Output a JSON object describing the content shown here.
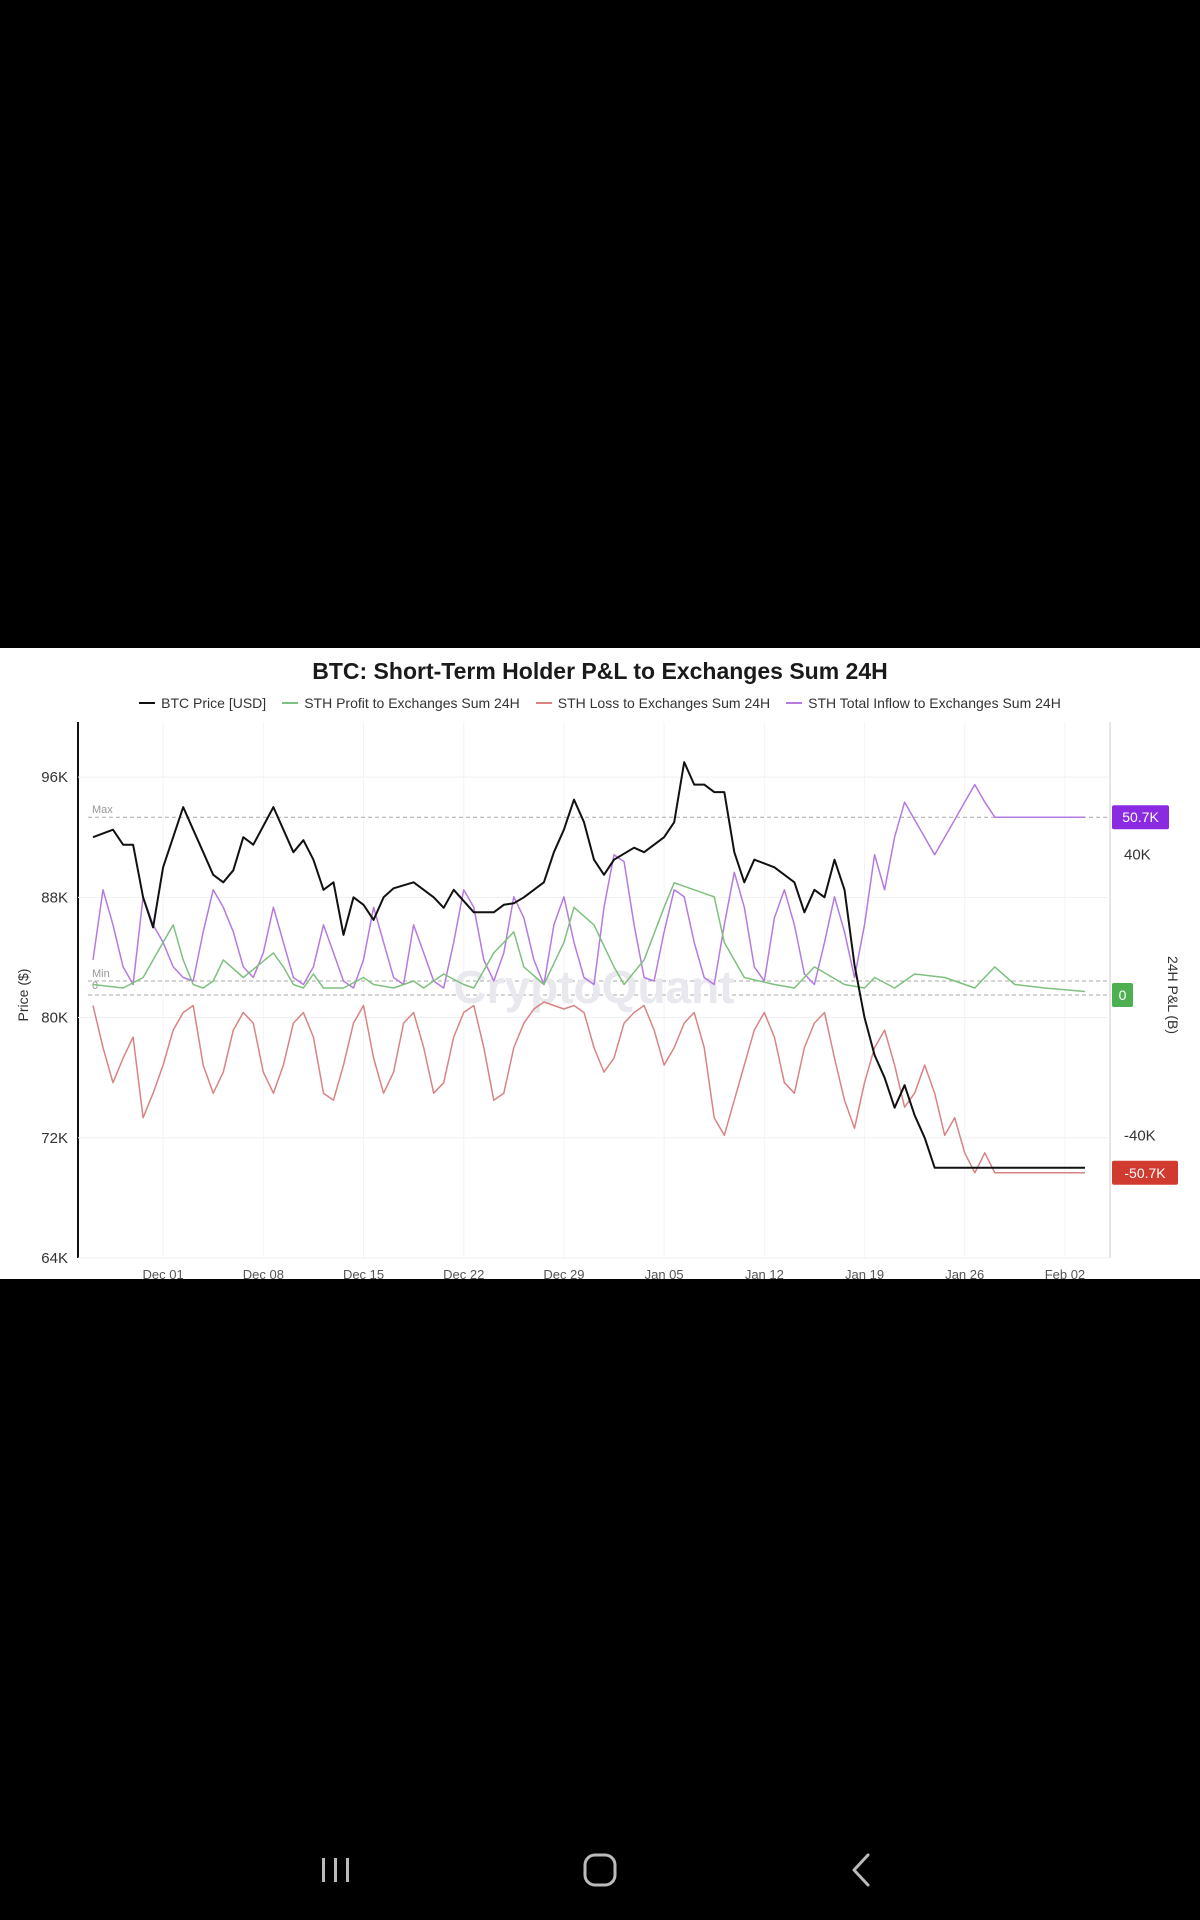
{
  "chart_data": {
    "type": "line",
    "title": "BTC: Short-Term Holder P&L to Exchanges Sum 24H",
    "legend": [
      {
        "name": "BTC Price [USD]",
        "color": "#111111"
      },
      {
        "name": "STH Profit to Exchanges Sum 24H",
        "color": "#7ec07e"
      },
      {
        "name": "STH Loss to Exchanges Sum 24H",
        "color": "#d98383"
      },
      {
        "name": "STH Total Inflow to  Exchanges Sum 24H",
        "color": "#b57ae0"
      }
    ],
    "y_left": {
      "label": "Price ($)",
      "ticks": [
        "96K",
        "88K",
        "80K",
        "72K",
        "64K"
      ],
      "range": [
        64000,
        99000
      ]
    },
    "y_right": {
      "label": "24H P&L (B)",
      "ticks": [
        "40K",
        "-40K"
      ],
      "range": [
        -75000,
        75000
      ]
    },
    "x_axis": {
      "ticks": [
        "Dec 01",
        "Dec 08",
        "Dec 15",
        "Dec 22",
        "Dec 29",
        "Jan 05",
        "Jan 12",
        "Jan 19",
        "Jan 26",
        "Feb 02"
      ]
    },
    "reference_lines": [
      {
        "label": "Max",
        "axis": "right",
        "value": 50700
      },
      {
        "label": "Min",
        "axis": "right",
        "value": 0
      },
      {
        "label": "0",
        "axis": "right",
        "value": 0
      }
    ],
    "badges": [
      {
        "text": "50.7K",
        "value": 50700,
        "color": "#8a2be2"
      },
      {
        "text": "0",
        "value": 0,
        "color": "#4caf50"
      },
      {
        "text": "-50.7K",
        "value": -50700,
        "color": "#d03a2f"
      }
    ],
    "watermark": "CryptoQuant",
    "series": [
      {
        "name": "BTC Price [USD]",
        "axis": "left",
        "color": "#111111",
        "x_days": [
          0,
          2,
          3,
          4,
          5,
          6,
          7,
          9,
          10,
          11,
          12,
          13,
          14,
          15,
          16,
          18,
          19,
          20,
          21,
          22,
          23,
          24,
          25,
          26,
          27,
          28,
          29,
          30,
          32,
          33,
          34,
          35,
          36,
          38,
          40,
          41,
          42,
          43,
          44,
          45,
          46,
          47,
          48,
          49,
          50,
          51,
          52,
          54,
          55,
          56,
          57,
          58,
          59,
          60,
          61,
          62,
          63,
          64,
          65,
          66,
          68,
          69,
          70,
          71,
          72,
          73,
          74,
          75,
          76,
          77,
          78,
          79,
          80,
          81,
          82,
          83,
          84,
          85,
          86,
          87,
          88,
          89,
          90,
          91,
          92,
          93,
          94,
          95,
          96,
          97,
          98,
          99
        ],
        "values": [
          92000,
          92500,
          91500,
          91500,
          88000,
          86000,
          90000,
          94000,
          92500,
          91000,
          89500,
          89000,
          89800,
          92000,
          91500,
          94000,
          92500,
          91000,
          91800,
          90500,
          88500,
          89000,
          85500,
          88000,
          87500,
          86500,
          88000,
          88600,
          89000,
          88500,
          88000,
          87300,
          88500,
          87000,
          87000,
          87500,
          87600,
          88000,
          88500,
          89000,
          91000,
          92500,
          94500,
          93000,
          90500,
          89500,
          90500,
          91300,
          91000,
          91500,
          92000,
          93000,
          97000,
          95500,
          95500,
          95000,
          95000,
          91000,
          89000,
          90500,
          90000,
          89500,
          89000,
          87000,
          88500,
          88000,
          90500,
          88500,
          83500,
          80000,
          77500,
          76000,
          74000,
          75500,
          73500,
          72000,
          70000,
          70000,
          70000,
          70000,
          70000,
          70000,
          70000,
          70000,
          70000,
          70000,
          70000,
          70000,
          70000,
          70000,
          70000,
          70000
        ]
      },
      {
        "name": "STH Total Inflow to  Exchanges Sum 24H",
        "axis": "right",
        "color": "#b57ae0",
        "x_days": [
          0,
          1,
          2,
          3,
          4,
          5,
          6,
          7,
          8,
          9,
          10,
          11,
          12,
          13,
          14,
          15,
          16,
          17,
          18,
          19,
          20,
          21,
          22,
          23,
          24,
          25,
          26,
          27,
          28,
          29,
          30,
          31,
          32,
          33,
          34,
          35,
          36,
          37,
          38,
          39,
          40,
          41,
          42,
          43,
          44,
          45,
          46,
          47,
          48,
          49,
          50,
          51,
          52,
          53,
          54,
          55,
          56,
          57,
          58,
          59,
          60,
          61,
          62,
          63,
          64,
          65,
          66,
          67,
          68,
          69,
          70,
          71,
          72,
          73,
          74,
          75,
          76,
          77,
          78,
          79,
          80,
          81,
          82,
          83,
          84,
          85,
          86,
          87,
          88,
          89,
          90,
          91,
          92,
          93,
          94,
          95,
          96,
          97,
          98,
          99
        ],
        "values": [
          10000,
          30000,
          20000,
          8000,
          3000,
          28000,
          20000,
          15000,
          8000,
          5000,
          4000,
          18000,
          30000,
          25000,
          18000,
          8000,
          5000,
          12000,
          25000,
          15000,
          5000,
          3000,
          8000,
          20000,
          12000,
          4000,
          2000,
          10000,
          25000,
          15000,
          5000,
          3000,
          20000,
          12000,
          4000,
          2000,
          15000,
          30000,
          25000,
          10000,
          4000,
          12000,
          28000,
          22000,
          10000,
          3000,
          20000,
          28000,
          15000,
          5000,
          3000,
          25000,
          40000,
          38000,
          20000,
          5000,
          4000,
          18000,
          30000,
          28000,
          15000,
          5000,
          3000,
          20000,
          35000,
          25000,
          8000,
          4000,
          22000,
          30000,
          20000,
          6000,
          3000,
          15000,
          28000,
          18000,
          5000,
          20000,
          40000,
          30000,
          45000,
          55000,
          50000,
          45000,
          40000,
          45000,
          50000,
          55000,
          60000,
          55000,
          50700,
          50700,
          50700,
          50700,
          50700,
          50700,
          50700,
          50700,
          50700,
          50700
        ]
      },
      {
        "name": "STH Loss to Exchanges Sum 24H",
        "axis": "right",
        "color": "#d98383",
        "x_days": [
          0,
          1,
          2,
          3,
          4,
          5,
          6,
          7,
          8,
          9,
          10,
          11,
          12,
          13,
          14,
          15,
          16,
          17,
          18,
          19,
          20,
          21,
          22,
          23,
          24,
          25,
          26,
          27,
          28,
          29,
          30,
          31,
          32,
          33,
          34,
          35,
          36,
          37,
          38,
          39,
          40,
          41,
          42,
          43,
          44,
          45,
          46,
          47,
          48,
          49,
          50,
          51,
          52,
          53,
          54,
          55,
          56,
          57,
          58,
          59,
          60,
          61,
          62,
          63,
          64,
          65,
          66,
          67,
          68,
          69,
          70,
          71,
          72,
          73,
          74,
          75,
          76,
          77,
          78,
          79,
          80,
          81,
          82,
          83,
          84,
          85,
          86,
          87,
          88,
          89,
          90,
          91,
          92,
          93,
          94,
          95,
          96,
          97,
          98,
          99
        ],
        "values": [
          -3000,
          -15000,
          -25000,
          -18000,
          -12000,
          -35000,
          -28000,
          -20000,
          -10000,
          -5000,
          -3000,
          -20000,
          -28000,
          -22000,
          -10000,
          -5000,
          -8000,
          -22000,
          -28000,
          -20000,
          -8000,
          -5000,
          -12000,
          -28000,
          -30000,
          -20000,
          -8000,
          -3000,
          -18000,
          -28000,
          -22000,
          -8000,
          -5000,
          -15000,
          -28000,
          -25000,
          -12000,
          -5000,
          -3000,
          -15000,
          -30000,
          -28000,
          -15000,
          -8000,
          -4000,
          -2000,
          -3000,
          -4000,
          -3000,
          -5000,
          -15000,
          -22000,
          -18000,
          -8000,
          -5000,
          -3000,
          -10000,
          -20000,
          -15000,
          -8000,
          -5000,
          -15000,
          -35000,
          -40000,
          -30000,
          -20000,
          -10000,
          -5000,
          -12000,
          -25000,
          -28000,
          -15000,
          -8000,
          -5000,
          -18000,
          -30000,
          -38000,
          -25000,
          -15000,
          -10000,
          -20000,
          -32000,
          -28000,
          -20000,
          -28000,
          -40000,
          -35000,
          -45000,
          -50700,
          -45000,
          -50700,
          -50700,
          -50700,
          -50700,
          -50700,
          -50700,
          -50700,
          -50700,
          -50700,
          -50700
        ]
      },
      {
        "name": "STH Profit to Exchanges Sum 24H",
        "axis": "right",
        "color": "#7ec07e",
        "x_days": [
          0,
          3,
          5,
          7,
          8,
          9,
          10,
          11,
          12,
          13,
          15,
          18,
          19,
          20,
          21,
          22,
          23,
          25,
          27,
          28,
          30,
          32,
          33,
          35,
          37,
          38,
          40,
          42,
          43,
          45,
          47,
          48,
          50,
          52,
          53,
          55,
          57,
          58,
          60,
          62,
          63,
          65,
          68,
          70,
          72,
          75,
          77,
          78,
          80,
          82,
          85,
          88,
          90,
          92,
          95,
          99
        ],
        "values": [
          3000,
          2000,
          5000,
          15000,
          20000,
          10000,
          3000,
          2000,
          4000,
          10000,
          5000,
          12000,
          8000,
          3000,
          2000,
          6000,
          2000,
          2000,
          5000,
          3000,
          2000,
          4000,
          2000,
          6000,
          3000,
          2000,
          12000,
          18000,
          8000,
          3000,
          15000,
          25000,
          20000,
          8000,
          3000,
          10000,
          25000,
          32000,
          30000,
          28000,
          15000,
          5000,
          3000,
          2000,
          8000,
          3000,
          2000,
          5000,
          2000,
          6000,
          5000,
          2000,
          8000,
          3000,
          2000,
          1000
        ]
      }
    ]
  },
  "nav": {
    "recents": "recents-button",
    "home": "home-button",
    "back": "back-button"
  }
}
